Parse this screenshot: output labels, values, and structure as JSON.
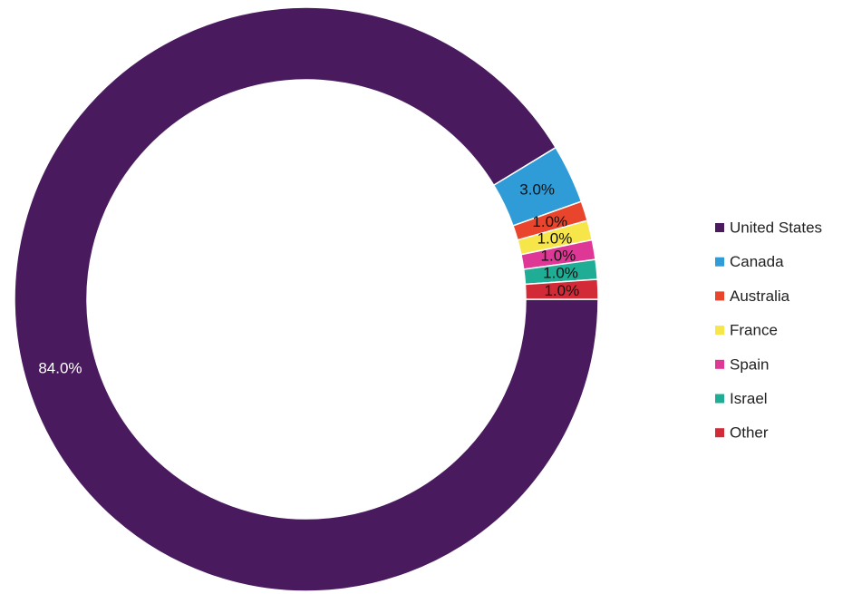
{
  "chart_data": {
    "type": "donut",
    "categories": [
      "United States",
      "Canada",
      "Australia",
      "France",
      "Spain",
      "Israel",
      "Other"
    ],
    "values": [
      84,
      3,
      1,
      1,
      1,
      1,
      1
    ],
    "value_labels": [
      "84.0%",
      "3.0%",
      "1.0%",
      "1.0%",
      "1.0%",
      "1.0%",
      "1.0%"
    ],
    "colors": [
      "#4a1a5e",
      "#2f9bd7",
      "#e8452c",
      "#f6e64a",
      "#df3795",
      "#20ad95",
      "#d22a37"
    ],
    "legend": "right"
  }
}
